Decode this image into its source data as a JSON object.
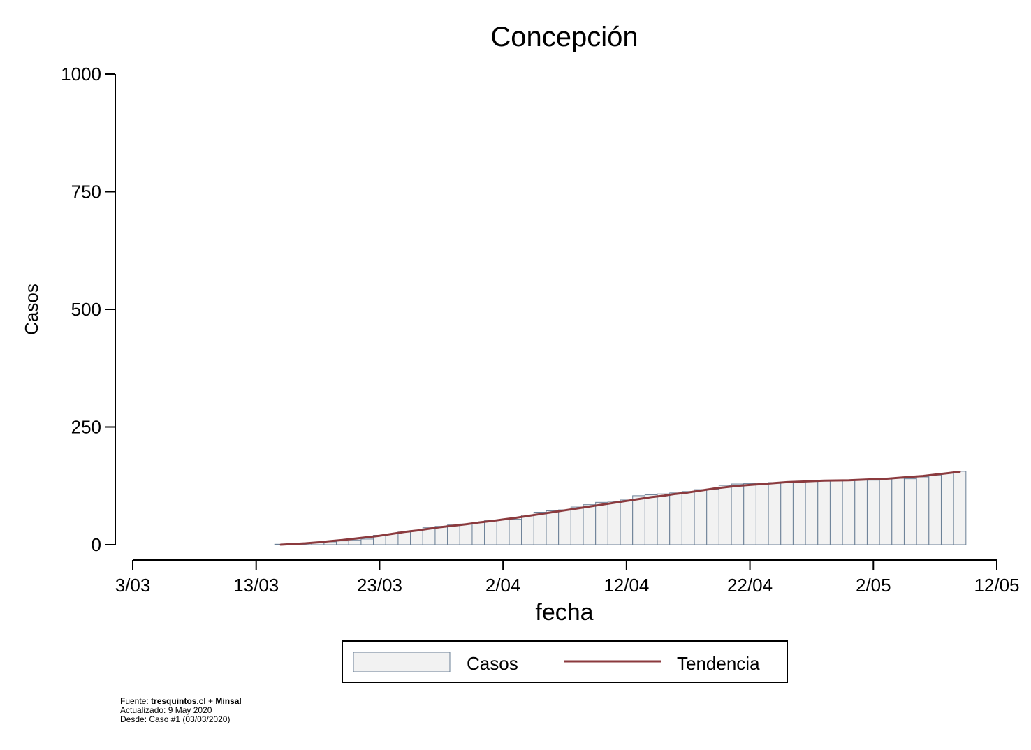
{
  "chart_data": {
    "type": "bar",
    "title": "Concepción",
    "xlabel": "fecha",
    "ylabel": "Casos",
    "ylim": [
      0,
      1000
    ],
    "yticks": [
      "0",
      "250",
      "500",
      "750",
      "1000"
    ],
    "xlim": [
      "2020-03-03",
      "2020-05-12"
    ],
    "xticks": [
      "3/03",
      "13/03",
      "23/03",
      "2/04",
      "12/04",
      "22/04",
      "2/05",
      "12/05"
    ],
    "grid": false,
    "legend_position": "bottom",
    "series": [
      {
        "name": "Casos",
        "kind": "bar",
        "color": "#f2f2f2",
        "edge_color": "#6a7f96",
        "x": [
          "2020-03-15",
          "2020-03-16",
          "2020-03-17",
          "2020-03-18",
          "2020-03-19",
          "2020-03-20",
          "2020-03-21",
          "2020-03-22",
          "2020-03-23",
          "2020-03-24",
          "2020-03-25",
          "2020-03-26",
          "2020-03-27",
          "2020-03-28",
          "2020-03-29",
          "2020-03-30",
          "2020-03-31",
          "2020-04-01",
          "2020-04-02",
          "2020-04-03",
          "2020-04-04",
          "2020-04-05",
          "2020-04-06",
          "2020-04-07",
          "2020-04-08",
          "2020-04-09",
          "2020-04-10",
          "2020-04-11",
          "2020-04-12",
          "2020-04-13",
          "2020-04-14",
          "2020-04-15",
          "2020-04-16",
          "2020-04-17",
          "2020-04-18",
          "2020-04-19",
          "2020-04-20",
          "2020-04-21",
          "2020-04-22",
          "2020-04-23",
          "2020-04-24",
          "2020-04-25",
          "2020-04-26",
          "2020-04-27",
          "2020-04-28",
          "2020-04-29",
          "2020-04-30",
          "2020-05-01",
          "2020-05-02",
          "2020-05-03",
          "2020-05-04",
          "2020-05-05",
          "2020-05-06",
          "2020-05-07",
          "2020-05-08",
          "2020-05-09"
        ],
        "values": [
          1,
          2,
          3,
          4,
          6,
          8,
          10,
          12,
          20,
          23,
          27,
          30,
          36,
          39,
          42,
          44,
          47,
          51,
          53,
          54,
          63,
          69,
          72,
          74,
          80,
          85,
          90,
          92,
          95,
          104,
          106,
          108,
          110,
          113,
          117,
          118,
          126,
          129,
          130,
          131,
          132,
          133,
          134,
          135,
          135,
          136,
          137,
          138,
          137,
          140,
          141,
          140,
          144,
          148,
          152,
          156
        ]
      },
      {
        "name": "Tendencia",
        "kind": "line",
        "color": "#8b3a3e",
        "x": [
          "2020-03-15",
          "2020-03-16",
          "2020-03-17",
          "2020-03-18",
          "2020-03-19",
          "2020-03-20",
          "2020-03-21",
          "2020-03-22",
          "2020-03-23",
          "2020-03-24",
          "2020-03-25",
          "2020-03-26",
          "2020-03-27",
          "2020-03-28",
          "2020-03-29",
          "2020-03-30",
          "2020-03-31",
          "2020-04-01",
          "2020-04-02",
          "2020-04-03",
          "2020-04-04",
          "2020-04-05",
          "2020-04-06",
          "2020-04-07",
          "2020-04-08",
          "2020-04-09",
          "2020-04-10",
          "2020-04-11",
          "2020-04-12",
          "2020-04-13",
          "2020-04-14",
          "2020-04-15",
          "2020-04-16",
          "2020-04-17",
          "2020-04-18",
          "2020-04-19",
          "2020-04-20",
          "2020-04-21",
          "2020-04-22",
          "2020-04-23",
          "2020-04-24",
          "2020-04-25",
          "2020-04-26",
          "2020-04-27",
          "2020-04-28",
          "2020-04-29",
          "2020-04-30",
          "2020-05-01",
          "2020-05-02",
          "2020-05-03",
          "2020-05-04",
          "2020-05-05",
          "2020-05-06",
          "2020-05-07",
          "2020-05-08",
          "2020-05-09"
        ],
        "values": [
          0,
          1.5,
          3,
          5,
          7.5,
          10,
          13,
          16,
          19,
          23,
          27,
          30,
          34,
          37.5,
          40.5,
          43.5,
          47,
          50,
          53.5,
          57,
          61,
          65,
          69,
          73,
          77,
          81,
          85,
          89,
          93,
          97,
          101,
          104,
          108,
          111,
          115,
          119,
          122,
          125,
          127,
          129,
          131,
          133,
          134,
          135,
          136,
          136.5,
          137,
          138,
          139,
          140,
          142,
          144,
          146,
          149,
          152,
          155
        ]
      }
    ]
  },
  "footer": {
    "fuente_label": "Fuente: ",
    "fuente_site": "tresquintos.cl",
    "fuente_plus": " + ",
    "fuente_org": "Minsal",
    "actualizado": "Actualizado: 9 May 2020",
    "desde": "Desde: Caso #1  (03/03/2020)"
  }
}
